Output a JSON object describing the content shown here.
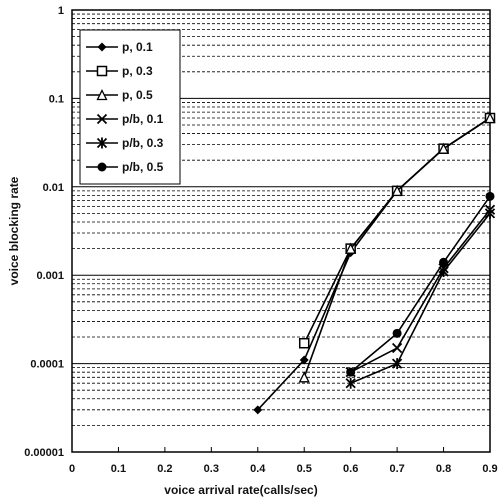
{
  "chart_data": {
    "type": "line",
    "xlabel": "voice arrival rate(calls/sec)",
    "ylabel": "voice blocking rate",
    "yscale": "log",
    "xlim": [
      0,
      0.9
    ],
    "ylim": [
      1e-05,
      1
    ],
    "x_ticks": [
      "0",
      "0.1",
      "0.2",
      "0.3",
      "0.4",
      "0.5",
      "0.6",
      "0.7",
      "0.8",
      "0.9"
    ],
    "y_ticks": [
      "0.00001",
      "0.0001",
      "0.001",
      "0.01",
      "0.1",
      "1"
    ],
    "y_tick_values": [
      1e-05,
      0.0001,
      0.001,
      0.01,
      0.1,
      1
    ],
    "grid": "horizontal dashed",
    "legend_position": "top-left",
    "series": [
      {
        "name": "p, 0.1",
        "marker": "diamond",
        "points": [
          [
            0.4,
            3e-05
          ],
          [
            0.5,
            0.00011
          ],
          [
            0.6,
            0.0018
          ],
          [
            0.7,
            0.009
          ],
          [
            0.8,
            0.027
          ],
          [
            0.9,
            0.06
          ]
        ]
      },
      {
        "name": "p, 0.3",
        "marker": "square",
        "points": [
          [
            0.5,
            0.00017
          ],
          [
            0.6,
            0.002
          ],
          [
            0.7,
            0.009
          ],
          [
            0.8,
            0.027
          ],
          [
            0.9,
            0.06
          ]
        ]
      },
      {
        "name": "p, 0.5",
        "marker": "triangle",
        "points": [
          [
            0.5,
            7e-05
          ],
          [
            0.6,
            0.002
          ],
          [
            0.7,
            0.009
          ],
          [
            0.8,
            0.027
          ],
          [
            0.9,
            0.06
          ]
        ]
      },
      {
        "name": "p/b, 0.1",
        "marker": "x",
        "points": [
          [
            0.6,
            8e-05
          ],
          [
            0.7,
            0.00015
          ],
          [
            0.8,
            0.0012
          ],
          [
            0.9,
            0.0055
          ]
        ]
      },
      {
        "name": "p/b, 0.3",
        "marker": "star",
        "points": [
          [
            0.6,
            6e-05
          ],
          [
            0.7,
            0.0001
          ],
          [
            0.8,
            0.0011
          ],
          [
            0.9,
            0.005
          ]
        ]
      },
      {
        "name": "p/b, 0.5",
        "marker": "circle",
        "points": [
          [
            0.6,
            8e-05
          ],
          [
            0.7,
            0.00022
          ],
          [
            0.8,
            0.0014
          ],
          [
            0.9,
            0.0078
          ]
        ]
      }
    ]
  }
}
